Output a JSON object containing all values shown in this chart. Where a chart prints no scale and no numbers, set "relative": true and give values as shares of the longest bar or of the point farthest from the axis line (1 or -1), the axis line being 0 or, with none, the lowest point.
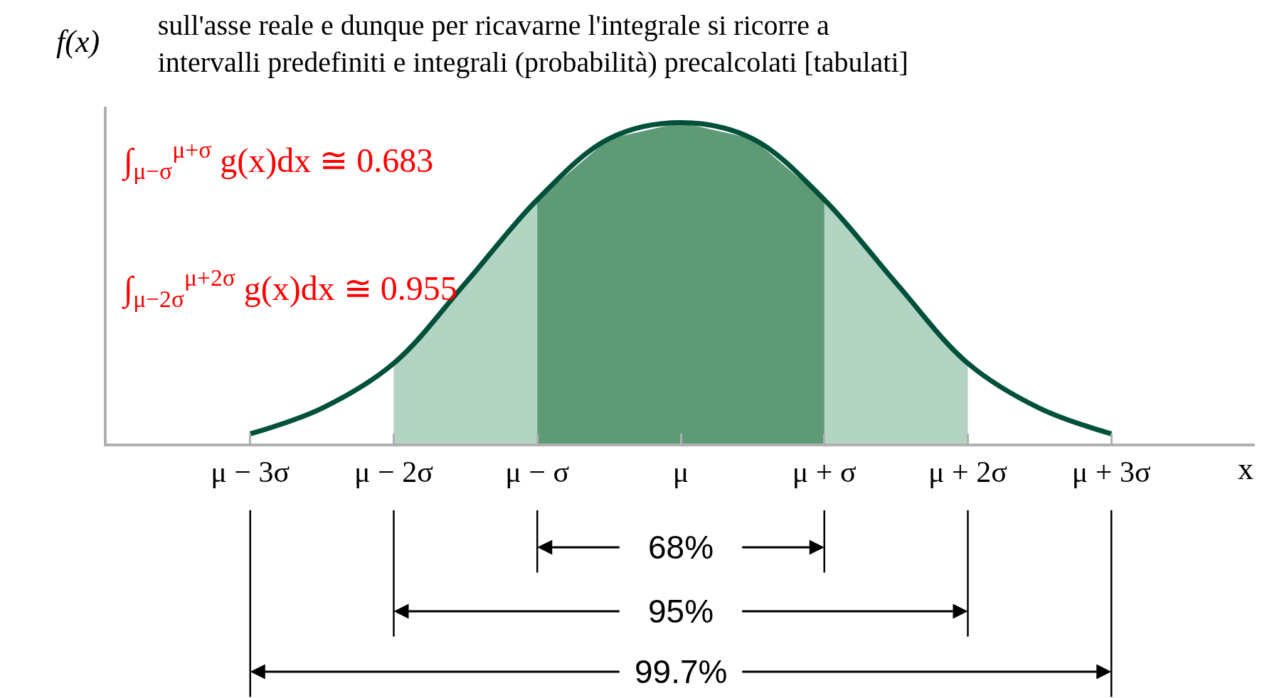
{
  "chart_data": {
    "type": "area",
    "relative": true,
    "title": "sull'asse reale e dunque per ricavarne l'integrale si ricorre a\nintervalli predefiniti e integrali (probabilità) precalcolati [tabulati]",
    "xlabel": "x",
    "ylabel": "f(x)",
    "xlim": [
      -4,
      4
    ],
    "xticks": [
      {
        "value": -3,
        "label": "μ − 3σ"
      },
      {
        "value": -2,
        "label": "μ − 2σ"
      },
      {
        "value": -1,
        "label": "μ − σ"
      },
      {
        "value": 0,
        "label": "μ"
      },
      {
        "value": 1,
        "label": "μ + σ"
      },
      {
        "value": 2,
        "label": "μ + 2σ"
      },
      {
        "value": 3,
        "label": "μ + 3σ"
      }
    ],
    "grid": false,
    "legend": false,
    "series": [
      {
        "color": "#5f9a77",
        "x": [
          -1,
          -0.5,
          0,
          0.5,
          1
        ],
        "values": [
          0.76,
          0.95,
          1,
          0.95,
          0.76
        ]
      },
      {
        "color": "#b3d4c3",
        "x": [
          -2,
          -1.5,
          -1,
          -0.5,
          0,
          0.5,
          1,
          1.5,
          2
        ],
        "values": [
          0.25,
          0.5,
          0.76,
          0.95,
          1,
          0.95,
          0.76,
          0.5,
          0.25
        ]
      },
      {
        "type": "line",
        "color": "#00503a",
        "x": [
          -3,
          -2.5,
          -2,
          -1.5,
          -1,
          -0.5,
          0,
          0.5,
          1,
          1.5,
          2,
          2.5,
          3
        ],
        "values": [
          0.03,
          0.11,
          0.25,
          0.5,
          0.76,
          0.95,
          1,
          0.95,
          0.76,
          0.5,
          0.25,
          0.11,
          0.03
        ]
      }
    ],
    "annotations": [
      "∫$_{μ−σ}$$^{μ+σ}$ g(x)dx ≅ 0.683",
      "∫$_{μ−2σ}$$^{μ+2σ}$ g(x)dx ≅ 0.955",
      "68%",
      "95%",
      "99.7%"
    ]
  }
}
